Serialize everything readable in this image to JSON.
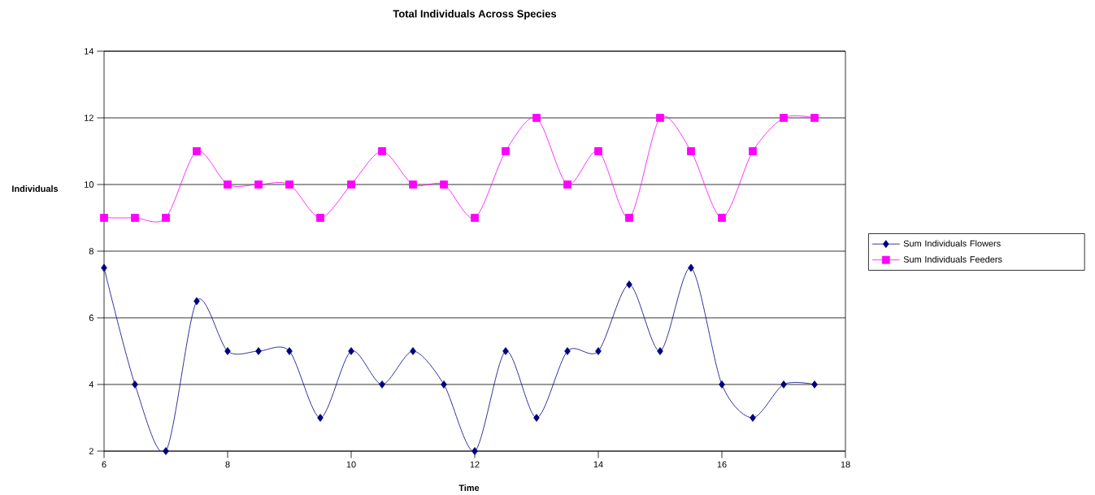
{
  "chart_data": {
    "type": "line",
    "title": "Total Individuals Across Species",
    "xlabel": "Time",
    "ylabel": "Individuals",
    "x": [
      6,
      6.5,
      7,
      7.5,
      8,
      8.5,
      9,
      9.5,
      10,
      10.5,
      11,
      11.5,
      12,
      12.5,
      13,
      13.5,
      14,
      14.5,
      15,
      15.5,
      16,
      16.5,
      17,
      17.5
    ],
    "series": [
      {
        "name": "Sum Individuals Flowers",
        "color": "#000080",
        "marker": "diamond",
        "values": [
          7.5,
          4,
          2,
          6.5,
          5,
          5,
          5,
          3,
          5,
          4,
          5,
          4,
          2,
          5,
          3,
          5,
          5,
          7,
          5,
          7.5,
          4,
          3,
          4,
          4
        ]
      },
      {
        "name": "Sum Individuals Feeders",
        "color": "#ff00ff",
        "marker": "square",
        "values": [
          9,
          9,
          9,
          11,
          10,
          10,
          10,
          9,
          10,
          11,
          10,
          10,
          9,
          11,
          12,
          10,
          11,
          9,
          12,
          11,
          9,
          11,
          12,
          12
        ]
      }
    ],
    "xlim": [
      6,
      18
    ],
    "xticks": [
      6,
      8,
      10,
      12,
      14,
      16,
      18
    ],
    "ylim": [
      2,
      14
    ],
    "yticks": [
      2,
      4,
      6,
      8,
      10,
      12,
      14
    ],
    "grid": "y",
    "legend": "right",
    "line_style": "solid"
  }
}
